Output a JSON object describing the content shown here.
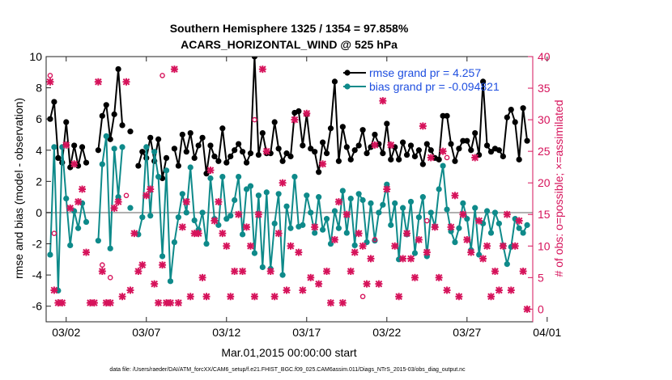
{
  "chart_data": {
    "type": "line",
    "title": "Southern Hemisphere 1325 / 1354 = 97.858%",
    "subtitle": "ACARS_HORIZONTAL_WIND @ 525 hPa",
    "xlabel": "Mar.01,2015 00:00:00 start",
    "ylabel_left": "rmse and bias (model - observation)",
    "ylabel_right": "# of obs: o=possible; ×=assimilated",
    "footer": "data file: /Users/raeder/DAI/ATM_forcXX/CAM6_setup/f.e21.FHIST_BGC.f09_025.CAM6assim.011/Diags_NTrS_2015-03/obs_diag_output.nc",
    "xlim": [
      0.75,
      31.1
    ],
    "ylim_left": [
      -7,
      10
    ],
    "ylim_right": [
      -2,
      40
    ],
    "grid": false,
    "x_ticks": [
      2,
      7,
      12,
      17,
      22,
      27,
      32
    ],
    "x_tick_labels": [
      "03/02",
      "03/07",
      "03/12",
      "03/17",
      "03/22",
      "03/27",
      "04/01"
    ],
    "y_left_ticks": [
      -6,
      -4,
      -2,
      0,
      2,
      4,
      6,
      8,
      10
    ],
    "y_right_ticks": [
      0,
      5,
      10,
      15,
      20,
      25,
      30,
      35,
      40
    ],
    "zero_line": 0,
    "legend_position": "top-right",
    "colors": {
      "rmse": "#000000",
      "bias": "#0e8a8a",
      "obs": "#d6135b",
      "zero": "#b0b0b0",
      "right_axis": "#d6135b",
      "legend_text": "#1f4fe0"
    },
    "series": [
      {
        "name": "rmse grand pr = 4.257",
        "axis": "left",
        "x": [
          1.0,
          1.25,
          1.5,
          1.75,
          2.0,
          2.25,
          2.5,
          2.75,
          3.0,
          3.25,
          3.5,
          3.75,
          4.0,
          4.25,
          4.5,
          4.75,
          5.0,
          5.25,
          5.5,
          5.75,
          6.0,
          6.25,
          6.5,
          6.75,
          7.0,
          7.25,
          7.5,
          7.75,
          8.0,
          8.25,
          8.5,
          8.75,
          9.0,
          9.25,
          9.5,
          9.75,
          10.0,
          10.25,
          10.5,
          10.75,
          11.0,
          11.25,
          11.5,
          11.75,
          12.0,
          12.25,
          12.5,
          12.75,
          13.0,
          13.25,
          13.5,
          13.75,
          14.0,
          14.25,
          14.5,
          14.75,
          15.0,
          15.25,
          15.5,
          15.75,
          16.0,
          16.25,
          16.5,
          16.75,
          17.0,
          17.25,
          17.5,
          17.75,
          18.0,
          18.25,
          18.5,
          18.75,
          19.0,
          19.25,
          19.5,
          19.75,
          20.0,
          20.25,
          20.5,
          20.75,
          21.0,
          21.25,
          21.5,
          21.75,
          22.0,
          22.25,
          22.5,
          22.75,
          23.0,
          23.25,
          23.5,
          23.75,
          24.0,
          24.25,
          24.5,
          24.75,
          25.0,
          25.25,
          25.5,
          25.75,
          26.0,
          26.25,
          26.5,
          26.75,
          27.0,
          27.25,
          27.5,
          27.75,
          28.0,
          28.25,
          28.5,
          28.75,
          29.0,
          29.25,
          29.5,
          29.75,
          30.0,
          30.25,
          30.5,
          30.75
        ],
        "y": [
          6.0,
          7.1,
          3.5,
          3.2,
          5.8,
          2.9,
          4.3,
          3.0,
          4.2,
          3.2,
          null,
          null,
          4.0,
          6.2,
          6.9,
          4.7,
          6.3,
          9.2,
          5.6,
          null,
          5.2,
          null,
          3.0,
          3.9,
          3.5,
          4.8,
          3.3,
          4.7,
          2.2,
          3.5,
          null,
          4.1,
          3.0,
          5.0,
          3.9,
          5.1,
          3.5,
          4.3,
          4.8,
          2.5,
          4.3,
          3.6,
          3.3,
          5.4,
          3.2,
          3.6,
          4.0,
          4.4,
          3.9,
          3.2,
          3.8,
          10.0,
          3.7,
          5.1,
          3.8,
          3.8,
          5.8,
          4.1,
          3.3,
          3.8,
          3.6,
          6.4,
          6.5,
          4.3,
          6.3,
          4.1,
          3.9,
          2.6,
          4.5,
          3.8,
          5.4,
          8.4,
          3.3,
          5.5,
          4.2,
          3.4,
          4.0,
          4.3,
          5.3,
          3.8,
          4.2,
          5.0,
          4.4,
          3.8,
          5.7,
          3.4,
          4.2,
          3.4,
          4.5,
          3.7,
          4.3,
          3.6,
          4.0,
          3.1,
          4.4,
          4.0,
          3.5,
          3.4,
          6.2,
          6.2,
          4.4,
          3.3,
          4.1,
          4.6,
          4.6,
          4.0,
          5.1,
          3.7,
          8.4,
          4.3,
          3.9,
          4.1,
          4.0,
          3.6,
          6.1,
          6.6,
          5.8,
          3.4,
          6.7,
          4.6
        ]
      },
      {
        "name": "bias grand pr = -0.094821",
        "axis": "left",
        "x": [
          1.0,
          1.25,
          1.5,
          1.75,
          2.0,
          2.25,
          2.5,
          2.75,
          3.0,
          3.25,
          3.5,
          3.75,
          4.0,
          4.25,
          4.5,
          4.75,
          5.0,
          5.25,
          5.5,
          5.75,
          6.0,
          6.25,
          6.5,
          6.75,
          7.0,
          7.25,
          7.5,
          7.75,
          8.0,
          8.25,
          8.5,
          8.75,
          9.0,
          9.25,
          9.5,
          9.75,
          10.0,
          10.25,
          10.5,
          10.75,
          11.0,
          11.25,
          11.5,
          11.75,
          12.0,
          12.25,
          12.5,
          12.75,
          13.0,
          13.25,
          13.5,
          13.75,
          14.0,
          14.25,
          14.5,
          14.75,
          15.0,
          15.25,
          15.5,
          15.75,
          16.0,
          16.25,
          16.5,
          16.75,
          17.0,
          17.25,
          17.5,
          17.75,
          18.0,
          18.25,
          18.5,
          18.75,
          19.0,
          19.25,
          19.5,
          19.75,
          20.0,
          20.25,
          20.5,
          20.75,
          21.0,
          21.25,
          21.5,
          21.75,
          22.0,
          22.25,
          22.5,
          22.75,
          23.0,
          23.25,
          23.5,
          23.75,
          24.0,
          24.25,
          24.5,
          24.75,
          25.0,
          25.25,
          25.5,
          25.75,
          26.0,
          26.25,
          26.5,
          26.75,
          27.0,
          27.25,
          27.5,
          27.75,
          28.0,
          28.25,
          28.5,
          28.75,
          29.0,
          29.25,
          29.5,
          29.75,
          30.0,
          30.25,
          30.5,
          30.75
        ],
        "y": [
          -2.7,
          4.2,
          -5.0,
          4.2,
          0.9,
          -2.1,
          0.1,
          -1.0,
          0.6,
          -0.6,
          null,
          null,
          -1.8,
          3.1,
          4.9,
          -2.3,
          4.1,
          1.0,
          4.2,
          null,
          0.3,
          null,
          -1.4,
          -0.3,
          4.2,
          -0.2,
          3.9,
          2.3,
          -2.8,
          2.7,
          -4.4,
          -1.9,
          -0.3,
          1.2,
          0.0,
          2.9,
          -0.5,
          -1.1,
          0.0,
          -2.0,
          2.2,
          -0.4,
          -0.8,
          2.3,
          -0.4,
          -0.2,
          0.8,
          2.3,
          -1.4,
          1.5,
          1.7,
          -2.6,
          1.1,
          -3.5,
          1.3,
          -3.6,
          -0.7,
          1.2,
          -4.0,
          0.4,
          -1.0,
          2.3,
          -0.9,
          -0.8,
          1.1,
          0.0,
          -1.3,
          1.0,
          -1.1,
          -0.4,
          -2.0,
          0.1,
          -1.0,
          1.4,
          -1.3,
          0.9,
          -2.1,
          1.2,
          0.8,
          -1.9,
          0.6,
          -1.8,
          0.0,
          0.5,
          1.8,
          -0.8,
          0.6,
          -3.0,
          0.3,
          -1.4,
          0.7,
          -2.6,
          -0.3,
          1.0,
          -2.8,
          0.0,
          -0.9,
          1.5,
          3.0,
          0.2,
          -1.2,
          -1.9,
          -1.0,
          0.6,
          -0.4,
          -2.4,
          0.3,
          -2.7,
          -0.7,
          0.1,
          -1.3,
          0.0,
          -0.7,
          -2.1,
          -3.3,
          -2.2,
          -0.4,
          -1.0,
          -1.3,
          -0.8
        ]
      },
      {
        "name": "assimilated",
        "axis": "right",
        "marker": "x",
        "x": [
          1.0,
          1.25,
          1.5,
          1.75,
          2.0,
          2.25,
          2.5,
          2.75,
          3.0,
          3.25,
          3.5,
          3.75,
          4.0,
          4.25,
          4.5,
          4.75,
          5.0,
          5.25,
          5.5,
          5.75,
          6.0,
          6.25,
          6.5,
          6.75,
          7.0,
          7.25,
          7.5,
          7.75,
          8.0,
          8.25,
          8.5,
          8.75,
          9.0,
          9.25,
          9.5,
          9.75,
          10.0,
          10.25,
          10.5,
          10.75,
          11.0,
          11.25,
          11.5,
          11.75,
          12.0,
          12.25,
          12.5,
          12.75,
          13.0,
          13.25,
          13.5,
          13.75,
          14.0,
          14.25,
          14.5,
          14.75,
          15.0,
          15.25,
          15.5,
          15.75,
          16.0,
          16.25,
          16.5,
          16.75,
          17.0,
          17.25,
          17.5,
          17.75,
          18.0,
          18.25,
          18.5,
          18.75,
          19.0,
          19.25,
          19.5,
          19.75,
          20.0,
          20.25,
          20.5,
          20.75,
          21.0,
          21.25,
          21.5,
          21.75,
          22.0,
          22.25,
          22.5,
          22.75,
          23.0,
          23.25,
          23.5,
          23.75,
          24.0,
          24.25,
          24.5,
          24.75,
          25.0,
          25.25,
          25.5,
          25.75,
          26.0,
          26.25,
          26.5,
          26.75,
          27.0,
          27.25,
          27.5,
          27.75,
          28.0,
          28.25,
          28.5,
          28.75,
          29.0,
          29.25,
          29.5,
          29.75,
          30.0,
          30.25,
          30.5,
          30.75
        ],
        "y": [
          36.0,
          3.0,
          1.0,
          1.0,
          26.0,
          16.0,
          23.0,
          17.0,
          19.0,
          9.0,
          1.0,
          1.0,
          36.0,
          6.0,
          1.0,
          1.0,
          16.0,
          17.0,
          2.0,
          36.0,
          3.0,
          12.0,
          6.0,
          7.0,
          18.0,
          19.0,
          4.0,
          1.0,
          7.0,
          1.0,
          1.0,
          38.0,
          1.0,
          13.0,
          17.0,
          2.0,
          12.0,
          12.0,
          5.0,
          2.0,
          22.0,
          14.0,
          17.0,
          12.0,
          10.0,
          2.0,
          6.0,
          15.0,
          6.0,
          13.0,
          10.0,
          2.0,
          15.0,
          38.0,
          25.0,
          6.0,
          2.0,
          12.0,
          20.0,
          3.0,
          10.0,
          30.0,
          9.0,
          3.0,
          31.0,
          5.0,
          13.0,
          4.0,
          23.0,
          6.0,
          1.0,
          11.0,
          17.0,
          1.0,
          15.0,
          6.0,
          9.0,
          12.0,
          10.0,
          4.0,
          8.0,
          26.0,
          4.0,
          33.0,
          19.0,
          26.0,
          10.0,
          2.0,
          8.0,
          12.0,
          8.0,
          5.0,
          11.0,
          29.0,
          9.0,
          24.0,
          13.0,
          5.0,
          25.0,
          3.0,
          13.0,
          18.0,
          2.0,
          15.0,
          11.0,
          9.0,
          24.0,
          14.0,
          8.0,
          10.0,
          2.0,
          6.0,
          3.0,
          10.0,
          15.0,
          3.0,
          10.0,
          14.0,
          6.0,
          0.0
        ]
      },
      {
        "name": "possible",
        "axis": "right",
        "marker": "o",
        "x": [
          1.0,
          1.25,
          4.25,
          4.75,
          5.75,
          8.0,
          13.75,
          20.5,
          21.25,
          24.5,
          25.75
        ],
        "y": [
          37.0,
          12.0,
          7.0,
          5.0,
          18.0,
          37.0,
          30.0,
          2.0,
          11.0,
          14.0,
          24.0
        ]
      }
    ]
  }
}
